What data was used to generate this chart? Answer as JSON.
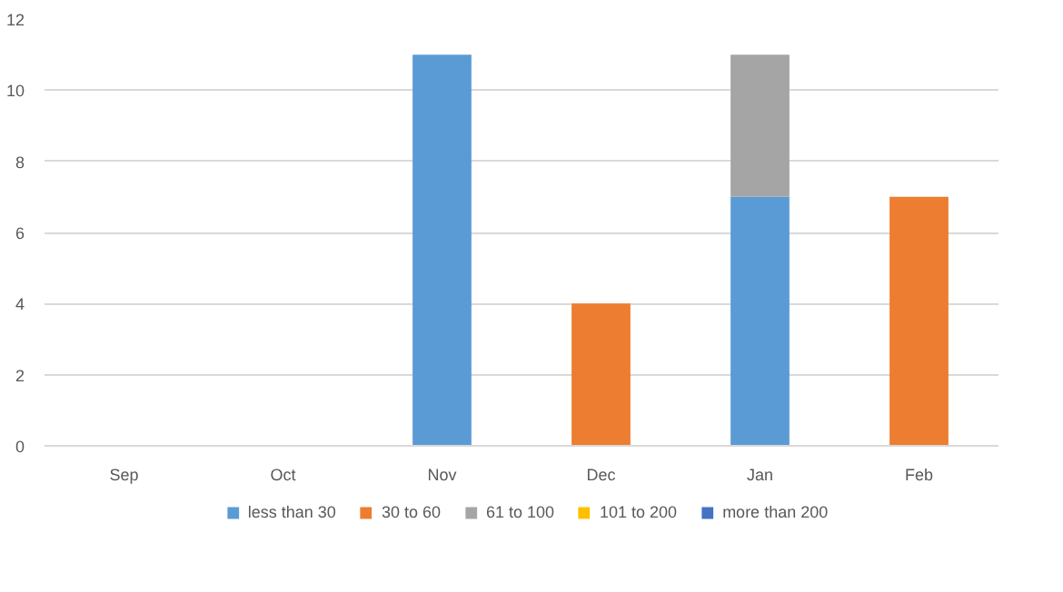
{
  "chart_data": {
    "type": "bar",
    "stacked": true,
    "categories": [
      "Sep",
      "Oct",
      "Nov",
      "Dec",
      "Jan",
      "Feb"
    ],
    "series": [
      {
        "name": "less than 30",
        "color": "#5b9bd5",
        "values": [
          0,
          0,
          11,
          0,
          7,
          0
        ]
      },
      {
        "name": "30 to 60",
        "color": "#ed7d31",
        "values": [
          0,
          0,
          0,
          4,
          0,
          7
        ]
      },
      {
        "name": "61 to 100",
        "color": "#a5a5a5",
        "values": [
          0,
          0,
          0,
          0,
          4,
          0
        ]
      },
      {
        "name": "101 to 200",
        "color": "#ffc000",
        "values": [
          0,
          0,
          0,
          0,
          0,
          0
        ]
      },
      {
        "name": "more than 200",
        "color": "#4472c4",
        "values": [
          0,
          0,
          0,
          0,
          0,
          0
        ]
      }
    ],
    "ylim": [
      0,
      12
    ],
    "yticks": [
      0,
      2,
      4,
      6,
      8,
      10,
      12
    ],
    "grid": "y",
    "legend": "bottom"
  }
}
